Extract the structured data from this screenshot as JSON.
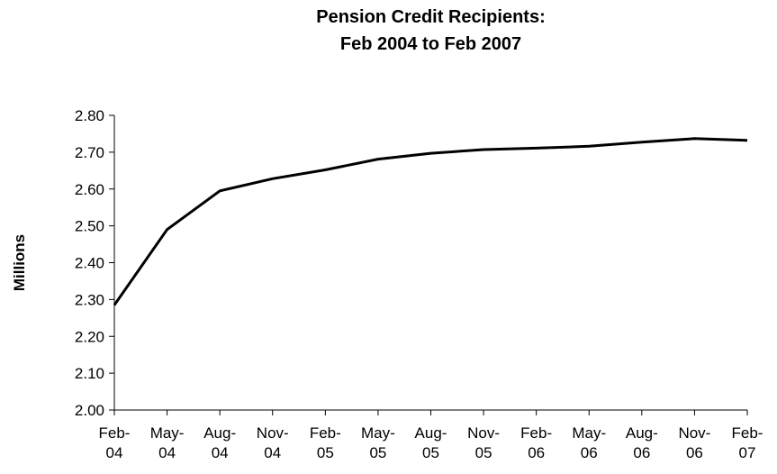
{
  "chart_data": {
    "type": "line",
    "title": "Pension Credit Recipients:",
    "subtitle": "Feb 2004 to Feb 2007",
    "xlabel": "",
    "ylabel": "Millions",
    "categories": [
      [
        "Feb-",
        "04"
      ],
      [
        "May-",
        "04"
      ],
      [
        "Aug-",
        "04"
      ],
      [
        "Nov-",
        "04"
      ],
      [
        "Feb-",
        "05"
      ],
      [
        "May-",
        "05"
      ],
      [
        "Aug-",
        "05"
      ],
      [
        "Nov-",
        "05"
      ],
      [
        "Feb-",
        "06"
      ],
      [
        "May-",
        "06"
      ],
      [
        "Aug-",
        "06"
      ],
      [
        "Nov-",
        "06"
      ],
      [
        "Feb-",
        "07"
      ]
    ],
    "values": [
      2.285,
      2.49,
      2.595,
      2.628,
      2.652,
      2.681,
      2.697,
      2.707,
      2.711,
      2.716,
      2.727,
      2.737,
      2.732
    ],
    "ylim": [
      2.0,
      2.8
    ],
    "yticks": [
      "2.00",
      "2.10",
      "2.20",
      "2.30",
      "2.40",
      "2.50",
      "2.60",
      "2.70",
      "2.80"
    ],
    "grid": false,
    "legend": "none",
    "line_color": "#000000"
  }
}
